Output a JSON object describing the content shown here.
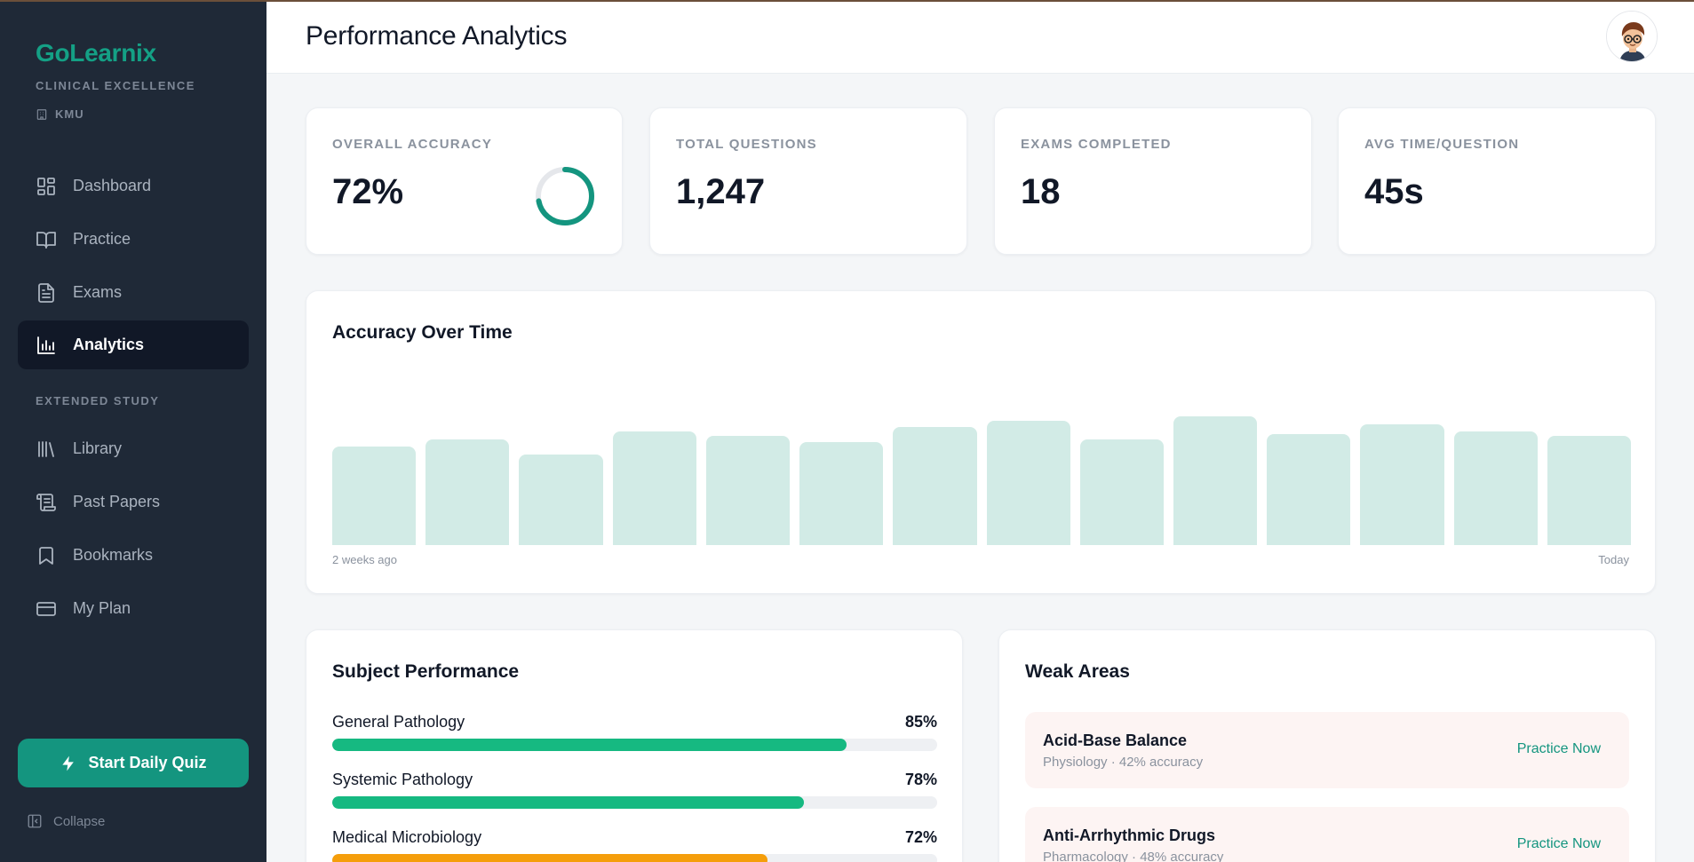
{
  "brand": {
    "name": "GoLearnix",
    "tagline": "CLINICAL EXCELLENCE",
    "org": "KMU"
  },
  "nav": {
    "items": [
      {
        "label": "Dashboard",
        "icon": "dashboard-icon"
      },
      {
        "label": "Practice",
        "icon": "book-open-icon"
      },
      {
        "label": "Exams",
        "icon": "document-icon"
      },
      {
        "label": "Analytics",
        "icon": "bar-chart-icon",
        "active": true
      }
    ],
    "section_label": "EXTENDED STUDY",
    "extended": [
      {
        "label": "Library",
        "icon": "library-icon"
      },
      {
        "label": "Past Papers",
        "icon": "scroll-icon"
      },
      {
        "label": "Bookmarks",
        "icon": "bookmark-icon"
      },
      {
        "label": "My Plan",
        "icon": "credit-card-icon"
      }
    ],
    "quiz_button": "Start Daily Quiz",
    "collapse": "Collapse"
  },
  "header": {
    "title": "Performance Analytics"
  },
  "stats": [
    {
      "label": "OVERALL ACCURACY",
      "value": "72%",
      "ring_fraction": 0.72
    },
    {
      "label": "TOTAL QUESTIONS",
      "value": "1,247"
    },
    {
      "label": "EXAMS COMPLETED",
      "value": "18"
    },
    {
      "label": "AVG TIME/QUESTION",
      "value": "45s"
    }
  ],
  "accuracy_chart": {
    "title": "Accuracy Over Time",
    "start_label": "2 weeks ago",
    "end_label": "Today"
  },
  "chart_data": {
    "type": "bar",
    "title": "Accuracy Over Time",
    "xlabel": "",
    "ylabel": "",
    "x_tick_labels": [
      "2 weeks ago",
      "Today"
    ],
    "values": [
      65,
      70,
      60,
      75,
      72,
      68,
      78,
      82,
      70,
      85,
      73,
      80,
      75,
      72
    ],
    "ylim": [
      0,
      100
    ],
    "color": "#d2ebe6"
  },
  "subjects": {
    "title": "Subject Performance",
    "items": [
      {
        "name": "General Pathology",
        "pct_label": "85%",
        "value": 0.85,
        "color": "#16b981"
      },
      {
        "name": "Systemic Pathology",
        "pct_label": "78%",
        "value": 0.78,
        "color": "#16b981"
      },
      {
        "name": "Medical Microbiology",
        "pct_label": "72%",
        "value": 0.72,
        "color": "#f59e0b"
      }
    ]
  },
  "weak_areas": {
    "title": "Weak Areas",
    "items": [
      {
        "name": "Acid-Base Balance",
        "meta": "Physiology · 42% accuracy",
        "action": "Practice Now"
      },
      {
        "name": "Anti-Arrhythmic Drugs",
        "meta": "Pharmacology · 48% accuracy",
        "action": "Practice Now"
      }
    ]
  },
  "colors": {
    "accent": "#14957f",
    "sidebar": "#1f2937",
    "bar": "#d2ebe6"
  }
}
